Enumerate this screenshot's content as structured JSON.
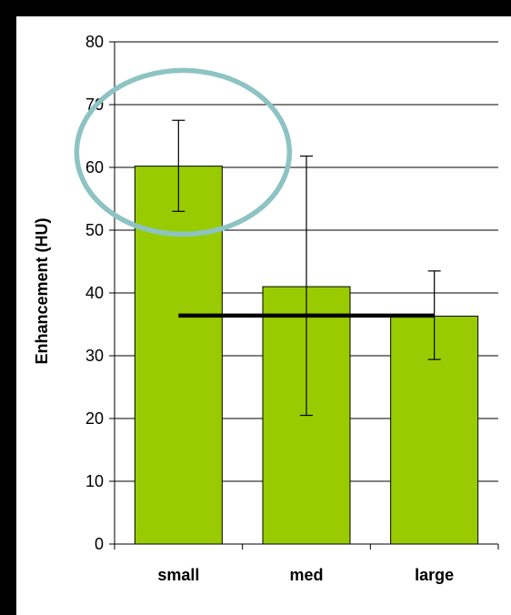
{
  "chart_data": {
    "type": "bar",
    "categories": [
      "small",
      "med",
      "large"
    ],
    "values": [
      60.2,
      41.0,
      36.3
    ],
    "error_low": [
      53.0,
      20.5,
      29.4
    ],
    "error_high": [
      67.5,
      61.8,
      43.5
    ],
    "reference_line": {
      "value": 36.4,
      "from_category": "small",
      "to_category": "large"
    },
    "highlight": {
      "shape": "ellipse",
      "category": "small",
      "color": "#8dc3c3"
    },
    "xlabel": "",
    "ylabel": "Enhancement (HU)",
    "ylim": [
      0,
      80
    ],
    "yticks": [
      0,
      10,
      20,
      30,
      40,
      50,
      60,
      70,
      80
    ],
    "grid": true,
    "legend": "none",
    "colors": {
      "bar_fill": "#99cc00",
      "bar_stroke": "#000000",
      "frame_background": "#000000",
      "plot_background": "#ffffff",
      "gridline": "#000000"
    }
  }
}
